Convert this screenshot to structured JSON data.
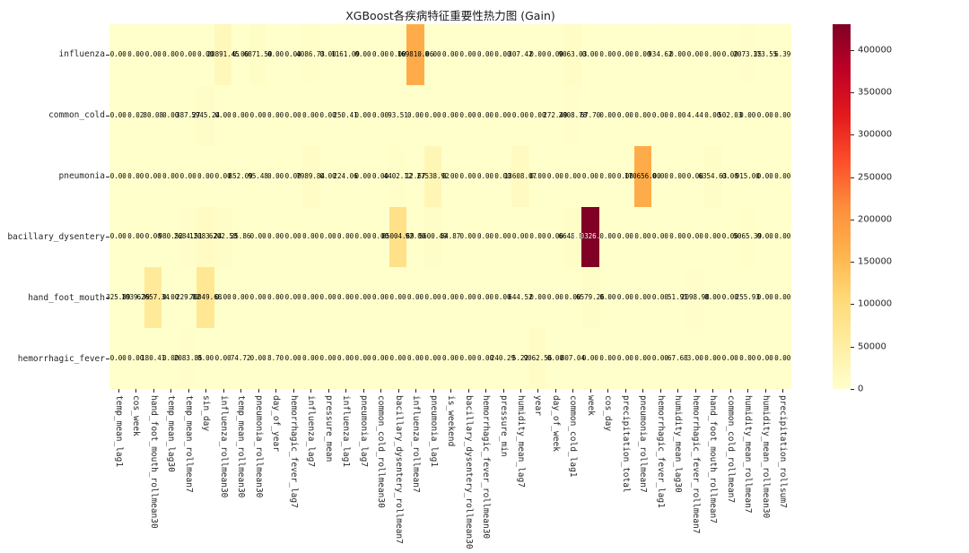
{
  "title": "XGBoost各疾病特征重要性热力图 (Gain)",
  "chart_data": {
    "type": "heatmap",
    "title": "XGBoost各疾病特征重要性热力图 (Gain)",
    "colormap": "YlOrRd",
    "colormap_stops": [
      "#ffffcc",
      "#ffeda0",
      "#fed976",
      "#feb24c",
      "#fd8d3c",
      "#fc4e2a",
      "#e31a1c",
      "#bd0026",
      "#800026"
    ],
    "vmin": 0,
    "vmax": 430326,
    "annotation_format": ".2f",
    "legend_position": "right-colorbar",
    "colorbar_ticks": [
      0,
      50000,
      100000,
      150000,
      200000,
      250000,
      300000,
      350000,
      400000
    ],
    "rows": [
      "influenza",
      "common_cold",
      "pneumonia",
      "bacillary_dysentery",
      "hand_foot_mouth",
      "hemorrhagic_fever"
    ],
    "columns": [
      "temp_mean_lag1",
      "cos_week",
      "hand_foot_mouth_rollmean30",
      "temp_mean_lag30",
      "temp_mean_rollmean7",
      "sin_day",
      "influenza_rollmean30",
      "temp_mean_rollmean30",
      "pneumonia_rollmean30",
      "day_of_year",
      "hemorrhagic_fever_lag7",
      "influenza_lag7",
      "pressure_mean",
      "influenza_lag1",
      "pneumonia_lag7",
      "common_cold_rollmean30",
      "bacillary_dysentery_rollmean7",
      "influenza_rollmean7",
      "pneumonia_lag1",
      "is_weekend",
      "bacillary_dysentery_rollmean30",
      "hemorrhagic_fever_rollmean30",
      "pressure_min",
      "humidity_mean_lag7",
      "year",
      "day_of_week",
      "common_cold_lag1",
      "week",
      "cos_day",
      "precipitation_total",
      "pneumonia_rollmean7",
      "hemorrhagic_fever_lag1",
      "humidity_mean_lag30",
      "hemorrhagic_fever_rollmean7",
      "hand_foot_mouth_rollmean7",
      "common_cold_rollmean7",
      "humidity_mean_rollmean7",
      "humidity_mean_rollmean30",
      "precipitation_rollsum7"
    ],
    "values": [
      [
        0,
        0,
        0,
        0,
        0,
        0,
        20891.45,
        0,
        6871.5,
        0,
        0,
        4086.73,
        0,
        1161.09,
        0,
        0,
        0,
        169810.06,
        0,
        0,
        0,
        0,
        0,
        307.42,
        0,
        0,
        9063.03,
        0,
        0,
        0,
        0,
        934.62,
        0,
        0,
        0,
        0,
        2073.35,
        173.55,
        6.39
      ],
      [
        0,
        0.02,
        80.08,
        0,
        387.27,
        5945.24,
        0,
        0,
        0,
        0,
        0,
        0,
        0,
        250.41,
        0,
        0,
        93.51,
        0,
        0,
        0,
        0,
        0,
        0,
        0,
        0,
        272.49,
        2008.78,
        67.7,
        0,
        0,
        0,
        0,
        0,
        4.44,
        0,
        502.03,
        0,
        0,
        0
      ],
      [
        0,
        0,
        0,
        0,
        0,
        0,
        0,
        852.09,
        95.48,
        0,
        0,
        7989.84,
        0,
        224.06,
        0,
        0,
        4402.12,
        12.67,
        27538.92,
        0,
        0,
        0,
        0,
        13608.07,
        0,
        0,
        0,
        0,
        0,
        0,
        170656.0,
        0,
        0,
        0,
        6354.63,
        0,
        915.0,
        0,
        0
      ],
      [
        0,
        0,
        0,
        980.52,
        2684.51,
        12083.24,
        6202.58,
        25.86,
        0,
        0,
        0,
        0,
        0,
        0,
        0,
        0,
        85004.69,
        92.0,
        5600.49,
        54.87,
        0,
        0,
        0,
        0,
        0,
        0,
        6648.86,
        430326.0,
        0,
        0,
        0,
        0,
        0,
        0,
        0,
        0,
        5065.39,
        0,
        0
      ],
      [
        325.89,
        1039.39,
        62657.34,
        0,
        229.82,
        70049.68,
        0,
        0,
        0,
        0,
        0,
        0,
        0,
        0,
        0,
        0,
        0,
        0,
        0,
        0,
        0,
        0,
        0,
        644.52,
        0,
        0,
        0,
        6579.26,
        0,
        0,
        0,
        0,
        51.91,
        2098.98,
        0,
        0,
        255.93,
        0,
        0
      ],
      [
        0,
        0,
        180.41,
        0,
        2083.85,
        0,
        0,
        74.72,
        0,
        8.7,
        0,
        0,
        0,
        0,
        0,
        0,
        0,
        0,
        0,
        0,
        0,
        0,
        240.29,
        5.22,
        9062.56,
        0,
        807.04,
        0,
        0,
        0,
        0,
        0,
        67.68,
        3.0,
        0,
        0,
        0,
        0,
        0
      ]
    ]
  }
}
